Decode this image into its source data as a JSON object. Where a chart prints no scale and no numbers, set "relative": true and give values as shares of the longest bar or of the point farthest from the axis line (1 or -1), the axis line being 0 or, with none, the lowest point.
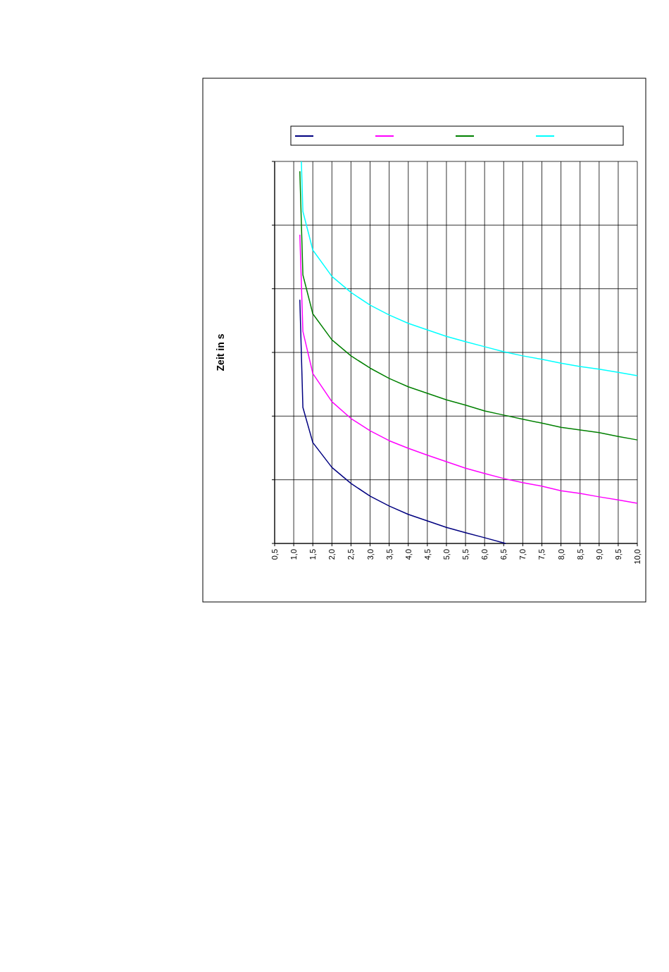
{
  "chart_data": {
    "type": "line",
    "ylabel": "Zeit in s",
    "relative": true,
    "xlim": [
      0.5,
      10
    ],
    "xticks": [
      {
        "value": 0.5,
        "label": "0,5"
      },
      {
        "value": 1,
        "label": "1,0"
      },
      {
        "value": 1.5,
        "label": "1,5"
      },
      {
        "value": 2,
        "label": "2,0"
      },
      {
        "value": 2.5,
        "label": "2,5"
      },
      {
        "value": 3,
        "label": "3,0"
      },
      {
        "value": 3.5,
        "label": "3,5"
      },
      {
        "value": 4,
        "label": "4,0"
      },
      {
        "value": 4.5,
        "label": "4,5"
      },
      {
        "value": 5,
        "label": "5,0"
      },
      {
        "value": 5.5,
        "label": "5,5"
      },
      {
        "value": 6,
        "label": "6,0"
      },
      {
        "value": 6.5,
        "label": "6,5"
      },
      {
        "value": 7,
        "label": "7,0"
      },
      {
        "value": 7.5,
        "label": "7,5"
      },
      {
        "value": 8,
        "label": "8,0"
      },
      {
        "value": 8.5,
        "label": "8,5"
      },
      {
        "value": 9,
        "label": "9,0"
      },
      {
        "value": 9.5,
        "label": "9,5"
      },
      {
        "value": 10,
        "label": "10,0"
      }
    ],
    "tick_labels": "x",
    "grid": true,
    "marker": "none",
    "line_style": "solid",
    "series": [
      {
        "color": "#000080",
        "x": [
          1.16,
          1.24,
          1.5,
          2,
          2.5,
          3,
          3.5,
          4,
          4.5,
          5,
          5.5,
          6,
          6.55
        ],
        "values": [
          0.638,
          0.356,
          0.264,
          0.199,
          0.157,
          0.124,
          0.098,
          0.076,
          0.059,
          0.042,
          0.028,
          0.015,
          0
        ]
      },
      {
        "color": "#ff00ff",
        "x": [
          1.16,
          1.24,
          1.5,
          2,
          2.5,
          3,
          3.5,
          4,
          4.5,
          5,
          5.5,
          6,
          6.5,
          7,
          7.5,
          8,
          8.5,
          9,
          9.5,
          10
        ],
        "values": [
          0.808,
          0.555,
          0.445,
          0.371,
          0.327,
          0.295,
          0.269,
          0.249,
          0.231,
          0.214,
          0.197,
          0.183,
          0.17,
          0.159,
          0.15,
          0.138,
          0.131,
          0.122,
          0.114,
          0.105
        ]
      },
      {
        "color": "#008000",
        "x": [
          1.16,
          1.24,
          1.5,
          2,
          2.5,
          3,
          3.5,
          4,
          4.5,
          5,
          5.5,
          6,
          6.5,
          7,
          7.5,
          8,
          8.5,
          9,
          9.5,
          10
        ],
        "values": [
          0.974,
          0.703,
          0.601,
          0.533,
          0.491,
          0.459,
          0.432,
          0.41,
          0.393,
          0.376,
          0.362,
          0.347,
          0.336,
          0.325,
          0.315,
          0.304,
          0.297,
          0.29,
          0.28,
          0.271
        ]
      },
      {
        "color": "#00ffff",
        "x": [
          1.2,
          1.24,
          1.5,
          2,
          2.5,
          3,
          3.5,
          4,
          4.5,
          5,
          5.5,
          6,
          6.5,
          7,
          7.5,
          8,
          8.5,
          9,
          9.5,
          10
        ],
        "values": [
          1,
          0.869,
          0.768,
          0.699,
          0.657,
          0.624,
          0.598,
          0.576,
          0.559,
          0.542,
          0.528,
          0.515,
          0.502,
          0.491,
          0.482,
          0.472,
          0.463,
          0.456,
          0.448,
          0.439
        ]
      }
    ]
  }
}
